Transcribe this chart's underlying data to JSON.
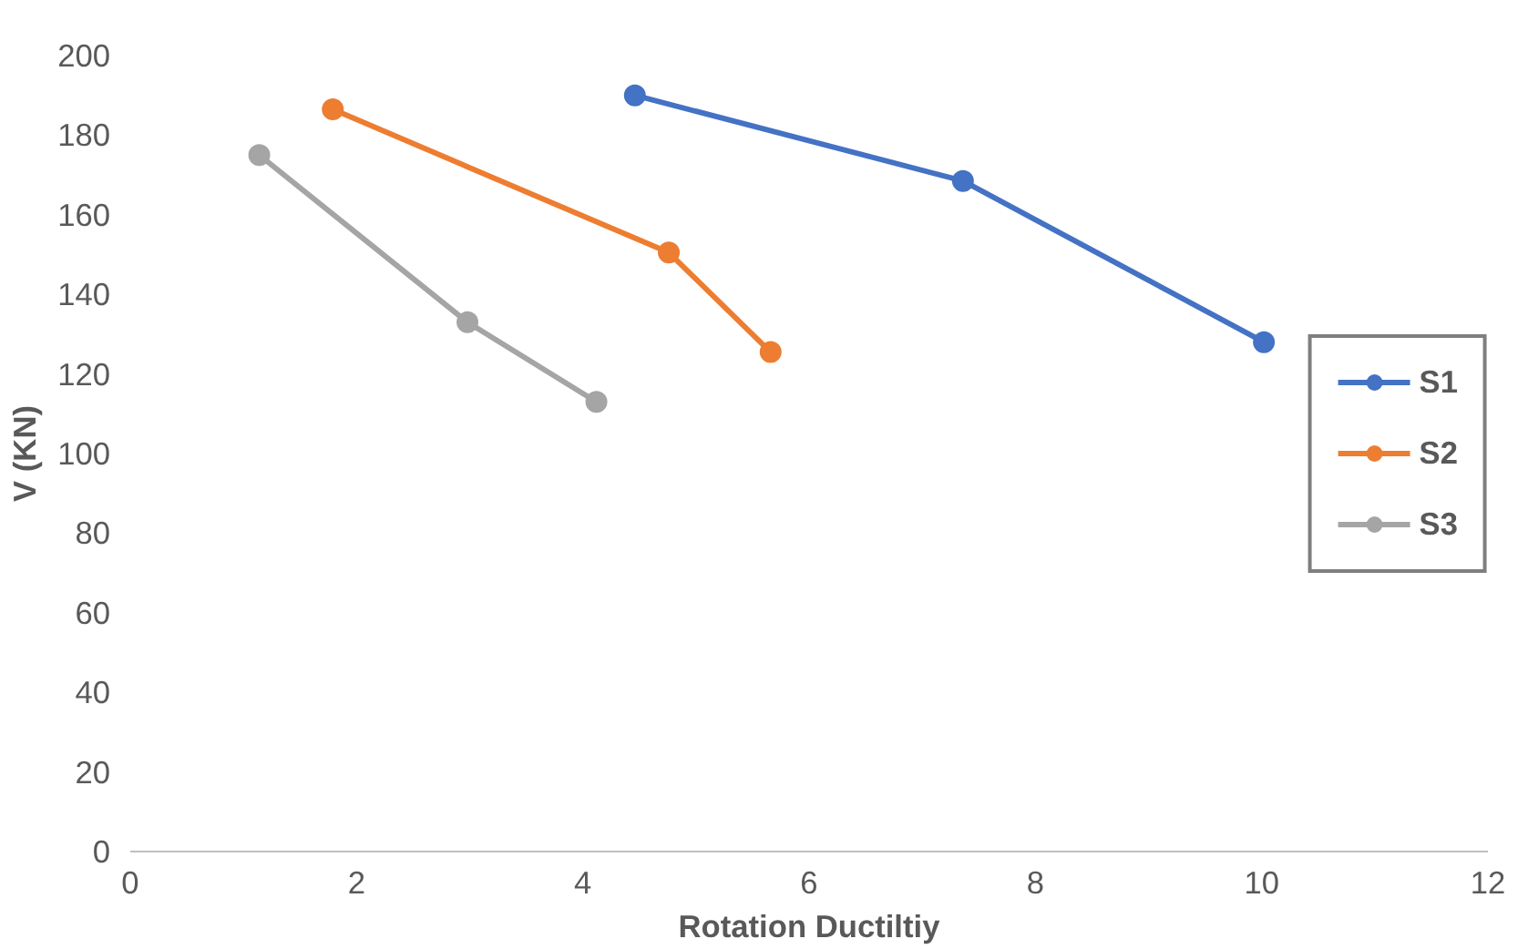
{
  "chart_data": {
    "type": "line",
    "xlabel": "Rotation Ductiltiy",
    "ylabel": "V (KN)",
    "xlim": [
      0,
      12
    ],
    "ylim": [
      0,
      200
    ],
    "xticks": [
      0,
      2,
      4,
      6,
      8,
      10,
      12
    ],
    "yticks": [
      0,
      20,
      40,
      60,
      80,
      100,
      120,
      140,
      160,
      180,
      200
    ],
    "grid": false,
    "legend": "right",
    "marker": "circle",
    "line_style": "solid",
    "series": [
      {
        "name": "S1",
        "color": "#4472c4",
        "x": [
          4.46,
          7.36,
          10.02
        ],
        "values": [
          190,
          168.5,
          128
        ]
      },
      {
        "name": "S2",
        "color": "#ed7d31",
        "x": [
          1.79,
          4.76,
          5.66
        ],
        "values": [
          186.5,
          150.5,
          125.5
        ]
      },
      {
        "name": "S3",
        "color": "#a5a5a5",
        "x": [
          1.14,
          2.98,
          4.12
        ],
        "values": [
          175,
          133,
          113
        ]
      }
    ]
  }
}
